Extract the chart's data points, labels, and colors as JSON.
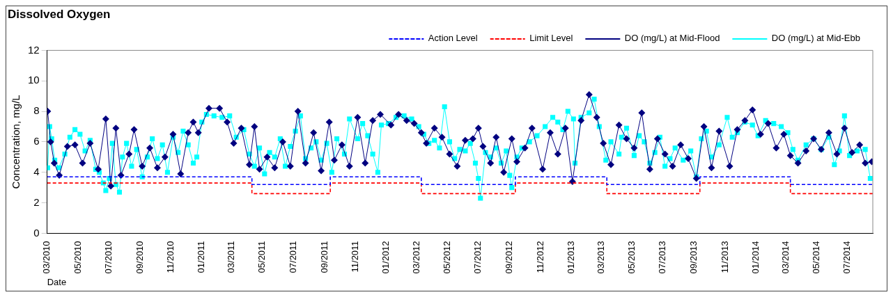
{
  "chart_data": {
    "type": "line",
    "title": "Dissolved Oxygen",
    "xlabel": "Date",
    "ylabel": "Concentration, mg/L",
    "legend": "top right",
    "xlim": [
      "2010-03-01",
      "2014-08-20"
    ],
    "xticks": [
      {
        "value": "2010-03",
        "label": "03/2010"
      },
      {
        "value": "2010-05",
        "label": "05/2010"
      },
      {
        "value": "2010-07",
        "label": "07/2010"
      },
      {
        "value": "2010-09",
        "label": "09/2010"
      },
      {
        "value": "2010-11",
        "label": "11/2010"
      },
      {
        "value": "2011-01",
        "label": "01/2011"
      },
      {
        "value": "2011-03",
        "label": "03/2011"
      },
      {
        "value": "2011-05",
        "label": "05/2011"
      },
      {
        "value": "2011-07",
        "label": "07/2011"
      },
      {
        "value": "2011-09",
        "label": "09/2011"
      },
      {
        "value": "2011-11",
        "label": "11/2011"
      },
      {
        "value": "2012-01",
        "label": "01/2012"
      },
      {
        "value": "2012-03",
        "label": "03/2012"
      },
      {
        "value": "2012-05",
        "label": "05/2012"
      },
      {
        "value": "2012-07",
        "label": "07/2012"
      },
      {
        "value": "2012-09",
        "label": "09/2012"
      },
      {
        "value": "2012-11",
        "label": "11/2012"
      },
      {
        "value": "2013-01",
        "label": "01/2013"
      },
      {
        "value": "2013-03",
        "label": "03/2013"
      },
      {
        "value": "2013-05",
        "label": "05/2013"
      },
      {
        "value": "2013-07",
        "label": "07/2013"
      },
      {
        "value": "2013-09",
        "label": "09/2013"
      },
      {
        "value": "2013-11",
        "label": "11/2013"
      },
      {
        "value": "2014-01",
        "label": "01/2014"
      },
      {
        "value": "2014-03",
        "label": "03/2014"
      },
      {
        "value": "2014-05",
        "label": "05/2014"
      },
      {
        "value": "2014-07",
        "label": "07/2014"
      }
    ],
    "ylim": [
      0,
      12
    ],
    "yticks": [
      0,
      2,
      4,
      6,
      8,
      10,
      12
    ],
    "series": [
      {
        "name": "Action Level",
        "type": "step",
        "color": "#0000ff",
        "line_style": "dashed",
        "marker": "none",
        "x": [
          "2010-03-01",
          "2011-04-10",
          "2011-09-12",
          "2012-03-10",
          "2012-09-12",
          "2013-03-12",
          "2013-09-12",
          "2014-03-10",
          "2014-08-20"
        ],
        "values": [
          3.7,
          3.2,
          3.7,
          3.2,
          3.7,
          3.2,
          3.7,
          3.2,
          3.2
        ]
      },
      {
        "name": "Limit Level",
        "type": "step",
        "color": "#ff0000",
        "line_style": "dashed",
        "marker": "none",
        "x": [
          "2010-03-01",
          "2011-04-10",
          "2011-09-12",
          "2012-03-10",
          "2012-09-12",
          "2013-03-12",
          "2013-09-12",
          "2014-03-10",
          "2014-08-20"
        ],
        "values": [
          3.3,
          2.6,
          3.3,
          2.6,
          3.3,
          2.6,
          3.3,
          2.6,
          2.6
        ]
      },
      {
        "name": "DO (mg/L) at Mid-Flood",
        "color": "#000080",
        "line_style": "solid",
        "marker": "diamond",
        "x": [
          "2010-03-02",
          "2010-03-08",
          "2010-03-15",
          "2010-03-25",
          "2010-04-10",
          "2010-04-25",
          "2010-05-10",
          "2010-05-25",
          "2010-06-10",
          "2010-06-25",
          "2010-07-05",
          "2010-07-15",
          "2010-07-25",
          "2010-08-10",
          "2010-08-20",
          "2010-09-05",
          "2010-09-20",
          "2010-10-05",
          "2010-10-20",
          "2010-11-05",
          "2010-11-20",
          "2010-12-05",
          "2010-12-15",
          "2010-12-25",
          "2011-01-15",
          "2011-02-05",
          "2011-02-20",
          "2011-03-05",
          "2011-03-20",
          "2011-04-05",
          "2011-04-15",
          "2011-04-25",
          "2011-05-10",
          "2011-05-25",
          "2011-06-10",
          "2011-06-25",
          "2011-07-10",
          "2011-07-25",
          "2011-08-10",
          "2011-08-25",
          "2011-09-10",
          "2011-09-20",
          "2011-10-05",
          "2011-10-20",
          "2011-11-05",
          "2011-11-20",
          "2011-12-05",
          "2011-12-20",
          "2012-01-10",
          "2012-01-25",
          "2012-02-10",
          "2012-02-25",
          "2012-03-10",
          "2012-03-20",
          "2012-04-05",
          "2012-04-20",
          "2012-05-05",
          "2012-05-20",
          "2012-06-05",
          "2012-06-20",
          "2012-07-01",
          "2012-07-10",
          "2012-07-25",
          "2012-08-05",
          "2012-08-20",
          "2012-09-05",
          "2012-09-15",
          "2012-10-01",
          "2012-10-15",
          "2012-11-05",
          "2012-11-20",
          "2012-12-05",
          "2012-12-20",
          "2013-01-03",
          "2013-01-20",
          "2013-02-05",
          "2013-02-20",
          "2013-03-05",
          "2013-03-20",
          "2013-04-05",
          "2013-04-20",
          "2013-05-05",
          "2013-05-20",
          "2013-06-05",
          "2013-06-20",
          "2013-07-05",
          "2013-07-20",
          "2013-08-05",
          "2013-08-20",
          "2013-09-05",
          "2013-09-20",
          "2013-10-05",
          "2013-10-20",
          "2013-11-10",
          "2013-11-25",
          "2013-12-10",
          "2013-12-25",
          "2014-01-10",
          "2014-01-25",
          "2014-02-10",
          "2014-02-25",
          "2014-03-10",
          "2014-03-25",
          "2014-04-10",
          "2014-04-25",
          "2014-05-10",
          "2014-05-25",
          "2014-06-10",
          "2014-06-25",
          "2014-07-10",
          "2014-07-25",
          "2014-08-05",
          "2014-08-18"
        ],
        "values": [
          8.0,
          6.0,
          4.6,
          3.8,
          5.7,
          5.8,
          4.6,
          5.9,
          4.2,
          7.5,
          3.1,
          6.9,
          3.8,
          5.2,
          6.8,
          4.4,
          5.6,
          4.3,
          5.0,
          6.5,
          3.9,
          6.6,
          7.3,
          6.6,
          8.2,
          8.2,
          7.3,
          5.9,
          6.9,
          4.5,
          7.0,
          4.2,
          5.0,
          4.3,
          6.0,
          4.4,
          8.0,
          4.6,
          6.6,
          4.1,
          7.3,
          4.8,
          5.8,
          4.4,
          7.6,
          4.6,
          7.4,
          7.8,
          7.1,
          7.8,
          7.4,
          7.2,
          6.6,
          5.9,
          6.9,
          6.3,
          5.2,
          4.4,
          6.1,
          6.2,
          6.9,
          5.7,
          4.6,
          6.3,
          4.0,
          6.2,
          4.7,
          5.6,
          6.9,
          4.2,
          6.6,
          5.2,
          6.9,
          3.4,
          7.4,
          9.1,
          7.6,
          5.9,
          4.5,
          7.1,
          6.2,
          5.6,
          7.9,
          4.2,
          6.2,
          5.2,
          4.4,
          5.8,
          4.9,
          3.6,
          7.0,
          4.3,
          6.7,
          4.4,
          6.8,
          7.4,
          8.1,
          6.5,
          7.2,
          5.6,
          6.5,
          5.1,
          4.6,
          5.4,
          6.2,
          5.5,
          6.6,
          5.2,
          6.9,
          5.3,
          5.8,
          4.6,
          4.7
        ]
      },
      {
        "name": "DO (mg/L) at Mid-Ebb",
        "color": "#00ffff",
        "line_style": "solid",
        "marker": "square",
        "x": [
          "2010-03-02",
          "2010-03-06",
          "2010-03-10",
          "2010-03-16",
          "2010-03-24",
          "2010-04-05",
          "2010-04-15",
          "2010-04-25",
          "2010-05-05",
          "2010-05-15",
          "2010-05-25",
          "2010-06-05",
          "2010-06-12",
          "2010-06-20",
          "2010-06-25",
          "2010-07-02",
          "2010-07-08",
          "2010-07-15",
          "2010-07-22",
          "2010-07-28",
          "2010-08-05",
          "2010-08-15",
          "2010-08-25",
          "2010-09-05",
          "2010-09-15",
          "2010-09-25",
          "2010-10-05",
          "2010-10-15",
          "2010-10-25",
          "2010-11-05",
          "2010-11-15",
          "2010-11-25",
          "2010-12-05",
          "2010-12-15",
          "2010-12-22",
          "2011-01-01",
          "2011-01-10",
          "2011-01-25",
          "2011-02-10",
          "2011-02-25",
          "2011-03-10",
          "2011-03-25",
          "2011-04-05",
          "2011-04-15",
          "2011-04-25",
          "2011-05-05",
          "2011-05-15",
          "2011-05-25",
          "2011-06-05",
          "2011-06-15",
          "2011-06-25",
          "2011-07-05",
          "2011-07-15",
          "2011-07-25",
          "2011-08-05",
          "2011-08-15",
          "2011-08-25",
          "2011-09-05",
          "2011-09-15",
          "2011-09-25",
          "2011-10-10",
          "2011-10-20",
          "2011-11-05",
          "2011-11-15",
          "2011-11-25",
          "2011-12-05",
          "2011-12-15",
          "2011-12-22",
          "2012-01-05",
          "2012-01-20",
          "2012-02-05",
          "2012-02-20",
          "2012-03-05",
          "2012-03-15",
          "2012-03-25",
          "2012-04-05",
          "2012-04-15",
          "2012-04-25",
          "2012-05-05",
          "2012-05-15",
          "2012-05-25",
          "2012-06-05",
          "2012-06-15",
          "2012-06-25",
          "2012-07-01",
          "2012-07-05",
          "2012-07-15",
          "2012-07-25",
          "2012-08-05",
          "2012-08-15",
          "2012-08-25",
          "2012-09-01",
          "2012-09-05",
          "2012-09-15",
          "2012-09-25",
          "2012-10-10",
          "2012-10-25",
          "2012-11-10",
          "2012-11-25",
          "2012-12-05",
          "2012-12-15",
          "2012-12-25",
          "2013-01-05",
          "2013-01-08",
          "2013-01-20",
          "2013-02-05",
          "2013-02-15",
          "2013-02-25",
          "2013-03-10",
          "2013-03-20",
          "2013-04-05",
          "2013-04-10",
          "2013-04-20",
          "2013-05-05",
          "2013-05-15",
          "2013-05-25",
          "2013-06-05",
          "2013-06-15",
          "2013-06-25",
          "2013-07-05",
          "2013-07-15",
          "2013-07-25",
          "2013-08-10",
          "2013-08-25",
          "2013-09-05",
          "2013-09-15",
          "2013-09-25",
          "2013-10-05",
          "2013-10-20",
          "2013-11-05",
          "2013-11-15",
          "2013-11-25",
          "2013-12-10",
          "2013-12-25",
          "2014-01-05",
          "2014-01-20",
          "2014-02-05",
          "2014-02-20",
          "2014-03-05",
          "2014-03-15",
          "2014-03-25",
          "2014-04-10",
          "2014-04-25",
          "2014-05-10",
          "2014-05-25",
          "2014-06-05",
          "2014-06-15",
          "2014-06-25",
          "2014-07-05",
          "2014-07-20",
          "2014-08-05",
          "2014-08-15"
        ],
        "values": [
          4.3,
          7.0,
          6.2,
          4.8,
          4.3,
          5.2,
          6.3,
          6.8,
          6.5,
          5.4,
          6.1,
          4.2,
          4.0,
          3.3,
          2.8,
          3.6,
          5.9,
          3.2,
          2.7,
          5.0,
          5.9,
          4.4,
          5.5,
          3.7,
          5.0,
          6.2,
          4.9,
          5.8,
          4.0,
          6.3,
          5.3,
          6.7,
          5.8,
          4.6,
          5.0,
          7.3,
          7.8,
          7.7,
          7.6,
          7.7,
          6.3,
          6.8,
          5.2,
          4.4,
          5.6,
          3.9,
          5.3,
          5.0,
          6.2,
          4.4,
          5.7,
          6.7,
          7.7,
          4.9,
          5.6,
          6.0,
          4.8,
          5.9,
          4.0,
          6.2,
          5.2,
          7.5,
          6.2,
          7.2,
          6.4,
          5.2,
          4.0,
          7.1,
          7.2,
          7.6,
          7.7,
          7.5,
          7.0,
          6.5,
          5.9,
          6.1,
          5.6,
          8.3,
          6.0,
          4.9,
          5.5,
          5.4,
          5.9,
          4.6,
          3.6,
          2.3,
          5.3,
          5.0,
          5.6,
          4.6,
          5.4,
          3.8,
          3.0,
          5.0,
          5.6,
          6.0,
          6.4,
          7.0,
          7.6,
          7.3,
          6.8,
          8.0,
          7.5,
          4.6,
          7.6,
          7.9,
          8.8,
          7.0,
          4.8,
          6.0,
          5.2,
          6.3,
          6.9,
          5.1,
          6.4,
          6.0,
          4.6,
          5.3,
          6.3,
          4.4,
          4.9,
          5.6,
          4.8,
          5.4,
          3.7,
          6.2,
          6.7,
          5.0,
          5.8,
          7.6,
          6.3,
          6.6,
          7.3,
          7.1,
          6.4,
          7.4,
          7.2,
          7.0,
          6.6,
          5.5,
          4.8,
          5.8,
          6.2,
          5.5,
          6.3,
          4.5,
          5.4,
          7.7,
          5.1,
          5.4,
          5.5,
          3.6
        ]
      }
    ]
  }
}
